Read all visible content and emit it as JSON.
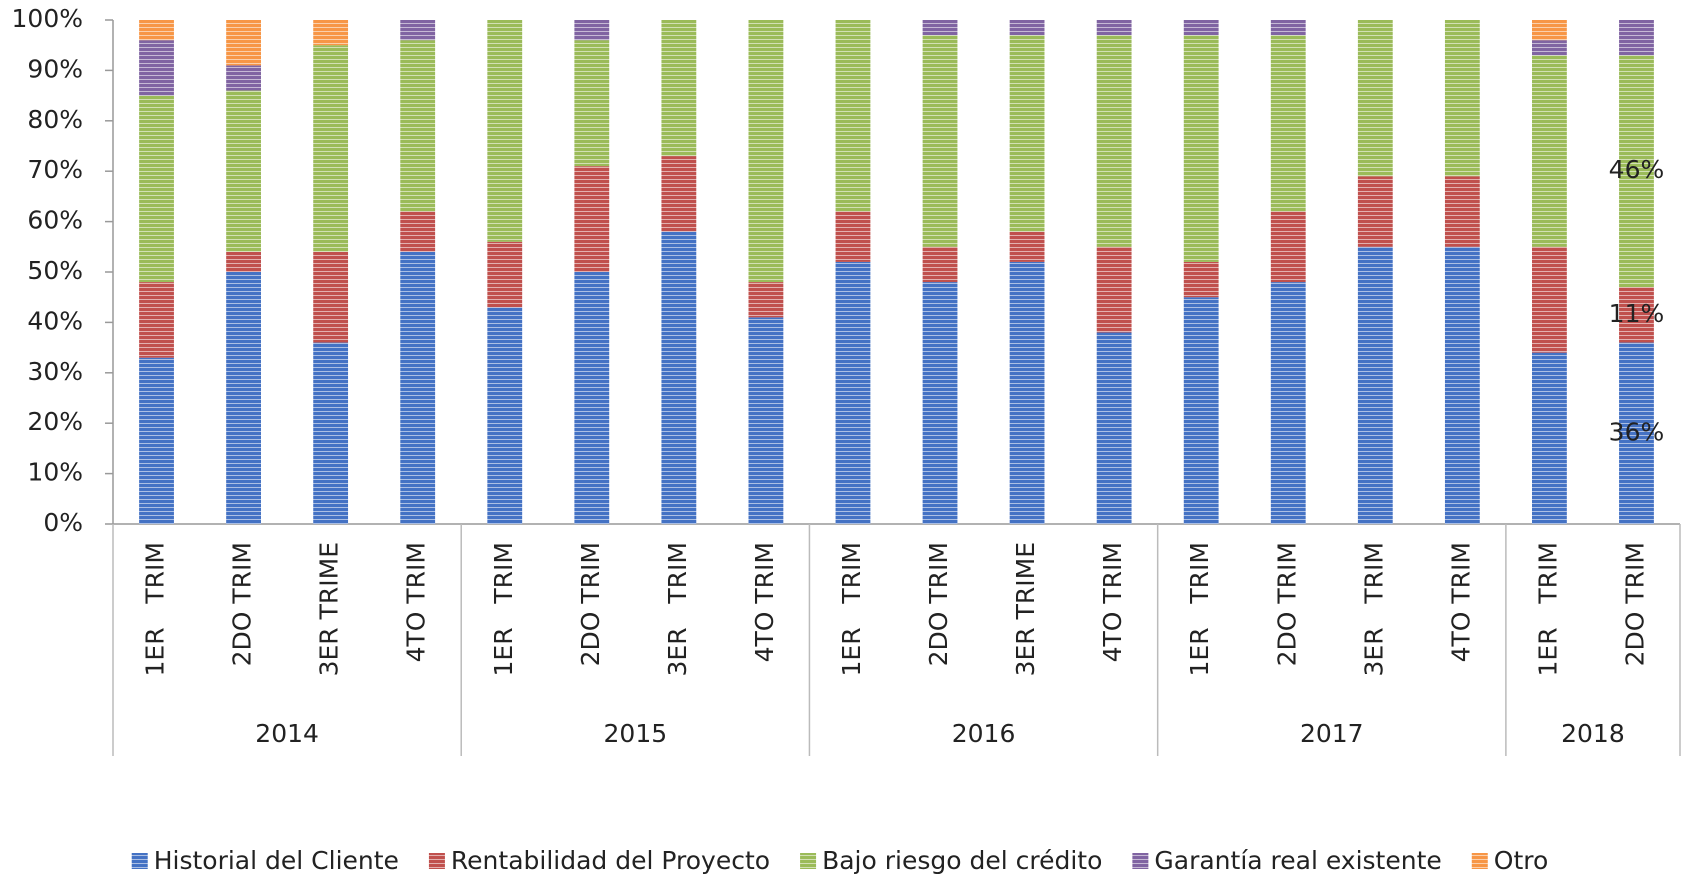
{
  "chart_data": {
    "type": "stacked_bar",
    "groups": [
      {
        "name": "2014",
        "categories": [
          "1ER   TRIM",
          "2DO TRIM",
          "3ER TRIME",
          "4TO TRIM"
        ]
      },
      {
        "name": "2015",
        "categories": [
          "1ER   TRIM",
          "2DO TRIM",
          "3ER   TRIM",
          "4TO TRIM"
        ]
      },
      {
        "name": "2016",
        "categories": [
          "1ER   TRIM",
          "2DO TRIM",
          "3ER TRIME",
          "4TO TRIM"
        ]
      },
      {
        "name": "2017",
        "categories": [
          "1ER   TRIM",
          "2DO TRIM",
          "3ER   TRIM",
          "4TO TRIM"
        ]
      },
      {
        "name": "2018",
        "categories": [
          "1ER   TRIM",
          "2DO TRIM"
        ]
      }
    ],
    "series": [
      {
        "name": "Historial del Cliente",
        "color": "#4472c4",
        "values": [
          33,
          50,
          36,
          54,
          43,
          50,
          58,
          41,
          52,
          48,
          52,
          38,
          45,
          48,
          55,
          55,
          34,
          36
        ],
        "value_labels": [
          null,
          null,
          null,
          null,
          null,
          null,
          null,
          null,
          null,
          null,
          null,
          null,
          null,
          null,
          null,
          null,
          null,
          "36%"
        ]
      },
      {
        "name": "Rentabilidad del Proyecto",
        "color": "#c0504d",
        "values": [
          15,
          4,
          18,
          8,
          13,
          21,
          15,
          7,
          10,
          7,
          6,
          17,
          7,
          14,
          14,
          14,
          21,
          11
        ],
        "value_labels": [
          null,
          null,
          null,
          null,
          null,
          null,
          null,
          null,
          null,
          null,
          null,
          null,
          null,
          null,
          null,
          null,
          null,
          "11%"
        ]
      },
      {
        "name": "Bajo riesgo del crédito",
        "color": "#9bbb59",
        "values": [
          37,
          32,
          41,
          34,
          44,
          25,
          27,
          52,
          38,
          42,
          39,
          42,
          45,
          35,
          31,
          31,
          38,
          46
        ],
        "value_labels": [
          null,
          null,
          null,
          null,
          null,
          null,
          null,
          null,
          null,
          null,
          null,
          null,
          null,
          null,
          null,
          null,
          null,
          "46%"
        ]
      },
      {
        "name": "Garantía real existente",
        "color": "#8064a2",
        "values": [
          11,
          5,
          0,
          4,
          0,
          4,
          0,
          0,
          0,
          3,
          3,
          3,
          3,
          3,
          0,
          0,
          3,
          7
        ]
      },
      {
        "name": "Otro",
        "color": "#f79646",
        "values": [
          4,
          9,
          5,
          0,
          0,
          0,
          0,
          0,
          0,
          0,
          0,
          0,
          0,
          0,
          0,
          0,
          4,
          0
        ]
      }
    ],
    "ylim": [
      0,
      100
    ],
    "yticks": [
      {
        "value": 0,
        "label": "0%"
      },
      {
        "value": 10,
        "label": "10%"
      },
      {
        "value": 20,
        "label": "20%"
      },
      {
        "value": 30,
        "label": "30%"
      },
      {
        "value": 40,
        "label": "40%"
      },
      {
        "value": 50,
        "label": "50%"
      },
      {
        "value": 60,
        "label": "60%"
      },
      {
        "value": 70,
        "label": "70%"
      },
      {
        "value": 80,
        "label": "80%"
      },
      {
        "value": 90,
        "label": "90%"
      },
      {
        "value": 100,
        "label": "100%"
      }
    ],
    "legend": "bottom"
  }
}
